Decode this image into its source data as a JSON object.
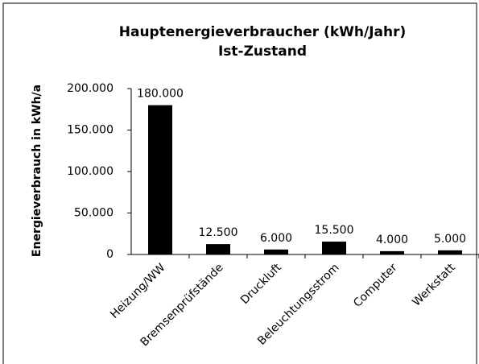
{
  "chart_data": {
    "type": "bar",
    "title": "Hauptenergieverbraucher (kWh/Jahr)",
    "subtitle": "Ist-Zustand",
    "y_label": "Energieverbrauch in kWh/a",
    "categories": [
      "Heizung/WW",
      "Bremsenprüfstände",
      "Druckluft",
      "Beleuchtungsstrom",
      "Computer",
      "Werkstatt"
    ],
    "values": [
      180000,
      12500,
      6000,
      15500,
      4000,
      5000
    ],
    "value_labels": [
      "180.000",
      "12.500",
      "6.000",
      "15.500",
      "4.000",
      "5.000"
    ],
    "color": "#000000",
    "ylim": [
      0,
      200000
    ],
    "yticks": [
      0,
      {
        "value": 50000,
        "label": "50.000"
      },
      {
        "value": 100000,
        "label": "100.000"
      },
      {
        "value": 150000,
        "label": "150.000"
      },
      {
        "value": 200000,
        "label": "200.000"
      }
    ],
    "grid": false
  }
}
